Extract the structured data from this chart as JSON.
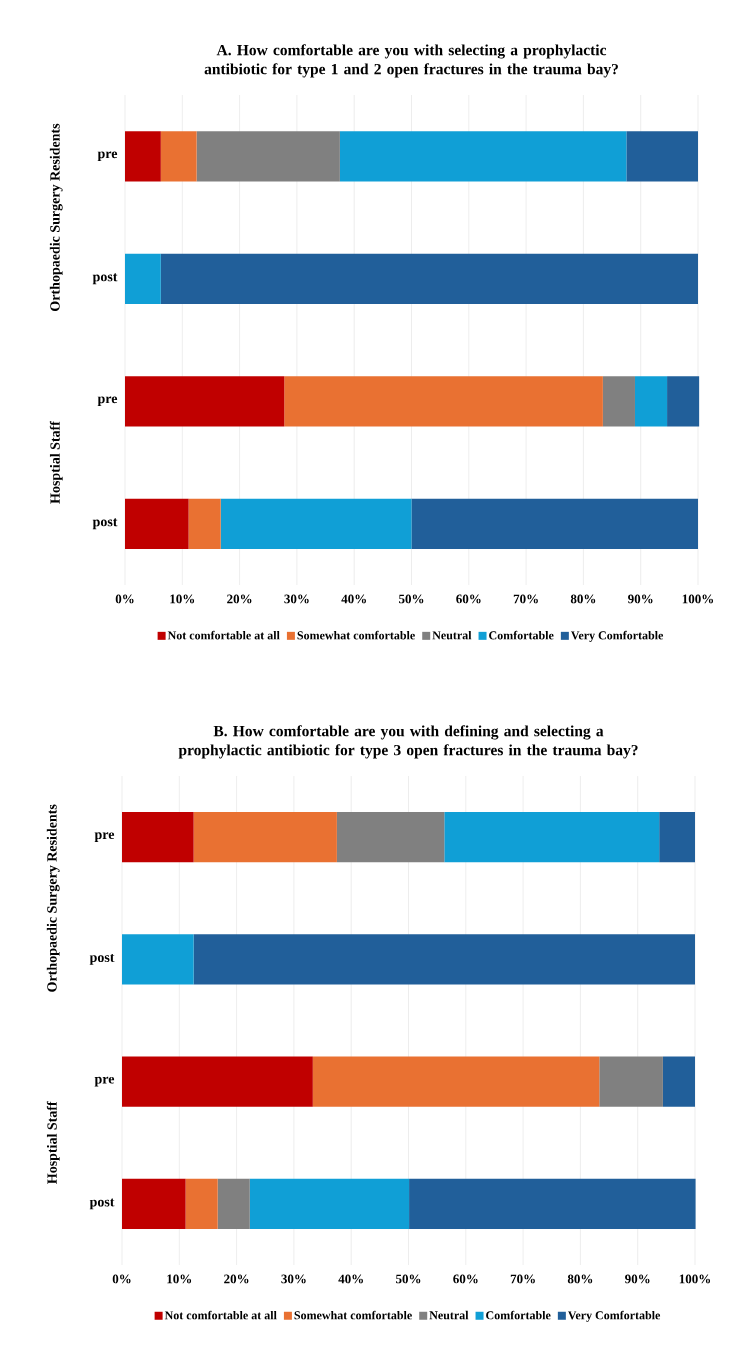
{
  "chart_data": [
    {
      "type": "bar",
      "orientation": "horizontal",
      "stacked": true,
      "title": "A. How comfortable are you with selecting a prophylactic antibiotic for type 1 and 2 open fractures in the trauma bay?",
      "categories": [
        "pre",
        "post",
        "pre",
        "post"
      ],
      "annotations": [
        "Orthopaedic Surgery Residents",
        "Hosptial Staff"
      ],
      "series": [
        {
          "name": "Not comfortable at all",
          "color": "#c00000",
          "values": [
            6.25,
            0,
            27.8,
            11.1
          ]
        },
        {
          "name": "Somewhat comfortable",
          "color": "#e97132",
          "values": [
            6.25,
            0,
            55.6,
            5.6
          ]
        },
        {
          "name": "Neutral",
          "color": "#808080",
          "values": [
            25,
            0,
            5.6,
            0
          ]
        },
        {
          "name": "Comfortable",
          "color": "#109fd6",
          "values": [
            50,
            6.25,
            5.6,
            33.3
          ]
        },
        {
          "name": "Very Comfortable",
          "color": "#215f9a",
          "values": [
            12.5,
            93.75,
            5.6,
            50
          ]
        }
      ],
      "xlim": [
        0,
        100
      ],
      "xticks": [
        {
          "value": 0,
          "label": "0%"
        },
        {
          "value": 10,
          "label": "10%"
        },
        {
          "value": 20,
          "label": "20%"
        },
        {
          "value": 30,
          "label": "30%"
        },
        {
          "value": 40,
          "label": "40%"
        },
        {
          "value": 50,
          "label": "50%"
        },
        {
          "value": 60,
          "label": "60%"
        },
        {
          "value": 70,
          "label": "70%"
        },
        {
          "value": 80,
          "label": "80%"
        },
        {
          "value": 90,
          "label": "90%"
        },
        {
          "value": 100,
          "label": "100%"
        }
      ],
      "grid": "x",
      "legend": "bottom"
    },
    {
      "type": "bar",
      "orientation": "horizontal",
      "stacked": true,
      "title": "B. How comfortable are you with defining and selecting a prophylactic antibiotic for type 3 open fractures in the trauma bay?",
      "categories": [
        "pre",
        "post",
        "pre",
        "post"
      ],
      "annotations": [
        "Orthopaedic Surgery Residents",
        "Hosptial Staff"
      ],
      "series": [
        {
          "name": "Not comfortable at all",
          "color": "#c00000",
          "values": [
            12.5,
            0,
            33.3,
            11.1
          ]
        },
        {
          "name": "Somewhat comfortable",
          "color": "#e97132",
          "values": [
            25,
            0,
            50,
            5.6
          ]
        },
        {
          "name": "Neutral",
          "color": "#808080",
          "values": [
            18.75,
            0,
            11.1,
            5.6
          ]
        },
        {
          "name": "Comfortable",
          "color": "#109fd6",
          "values": [
            37.5,
            12.5,
            0,
            27.8
          ]
        },
        {
          "name": "Very Comfortable",
          "color": "#215f9a",
          "values": [
            6.25,
            87.5,
            5.6,
            50
          ]
        }
      ],
      "xlim": [
        0,
        100
      ],
      "xticks": [
        {
          "value": 0,
          "label": "0%"
        },
        {
          "value": 10,
          "label": "10%"
        },
        {
          "value": 20,
          "label": "20%"
        },
        {
          "value": 30,
          "label": "30%"
        },
        {
          "value": 40,
          "label": "40%"
        },
        {
          "value": 50,
          "label": "50%"
        },
        {
          "value": 60,
          "label": "60%"
        },
        {
          "value": 70,
          "label": "70%"
        },
        {
          "value": 80,
          "label": "80%"
        },
        {
          "value": 90,
          "label": "90%"
        },
        {
          "value": 100,
          "label": "100%"
        }
      ],
      "grid": "x",
      "legend": "bottom"
    }
  ]
}
